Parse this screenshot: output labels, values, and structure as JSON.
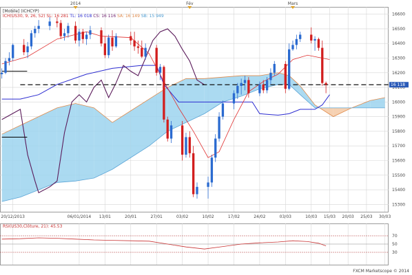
{
  "chart_data": [
    {
      "type": "candlestick",
      "legend": {
        "title": "[Mobile] (ICHCYP)",
        "entries": [
          {
            "label": "ICH(US30, 9, 26, 52)",
            "color": "#d03030"
          },
          {
            "label": "SL: 16 281",
            "color": "#d03030"
          },
          {
            "label": "TL: 16 018",
            "color": "#2a2ad0"
          },
          {
            "label": "CS: 16 116",
            "color": "#6a1a6a"
          },
          {
            "label": "SA: 16 149",
            "color": "#e08a4a"
          },
          {
            "label": "SB: 15 949",
            "color": "#4a9ad0"
          }
        ]
      },
      "top_labels": [
        {
          "label": "2014",
          "day": 5
        },
        {
          "label": "Fév",
          "day": 36
        },
        {
          "label": "Mars",
          "day": 64
        }
      ],
      "x_ticks": [
        {
          "label": "20/12/2013",
          "day": -12
        },
        {
          "label": "06/01/2014",
          "day": 6
        },
        {
          "label": "13/01",
          "day": 13
        },
        {
          "label": "20/01",
          "day": 20
        },
        {
          "label": "27/01",
          "day": 27
        },
        {
          "label": "03/02",
          "day": 34
        },
        {
          "label": "10/02",
          "day": 41
        },
        {
          "label": "17/02",
          "day": 48
        },
        {
          "label": "24/02",
          "day": 55
        },
        {
          "label": "03/03",
          "day": 62
        },
        {
          "label": "10/03",
          "day": 69
        },
        {
          "label": "15/03",
          "day": 74
        },
        {
          "label": "20/03",
          "day": 79
        },
        {
          "label": "25/03",
          "day": 84
        },
        {
          "label": "30/03",
          "day": 89
        }
      ],
      "ylim": [
        15250,
        16650
      ],
      "y_ticks": [
        15300,
        15400,
        15500,
        15600,
        15700,
        15800,
        15900,
        16000,
        16100,
        16200,
        16300,
        16400,
        16500,
        16600
      ],
      "last_price": "16 118",
      "last_price_value": 16118,
      "candles": [
        {
          "day": -15,
          "o": 16190,
          "h": 16230,
          "l": 16160,
          "c": 16200
        },
        {
          "day": -14,
          "o": 16200,
          "h": 16300,
          "l": 16190,
          "c": 16280
        },
        {
          "day": -13,
          "o": 16280,
          "h": 16340,
          "l": 16250,
          "c": 16300
        },
        {
          "day": -12,
          "o": 16300,
          "h": 16400,
          "l": 16280,
          "c": 16390
        },
        {
          "day": -9,
          "o": 16390,
          "h": 16430,
          "l": 16320,
          "c": 16340
        },
        {
          "day": -8,
          "o": 16340,
          "h": 16410,
          "l": 16300,
          "c": 16380
        },
        {
          "day": -7,
          "o": 16380,
          "h": 16490,
          "l": 16360,
          "c": 16470
        },
        {
          "day": -6,
          "o": 16470,
          "h": 16520,
          "l": 16440,
          "c": 16500
        },
        {
          "day": -5,
          "o": 16500,
          "h": 16560,
          "l": 16470,
          "c": 16520
        },
        {
          "day": -2,
          "o": 16520,
          "h": 16580,
          "l": 16490,
          "c": 16550
        },
        {
          "day": 0,
          "o": 16550,
          "h": 16580,
          "l": 16510,
          "c": 16540
        },
        {
          "day": 1,
          "o": 16540,
          "h": 16560,
          "l": 16430,
          "c": 16450
        },
        {
          "day": 2,
          "o": 16450,
          "h": 16500,
          "l": 16420,
          "c": 16470
        },
        {
          "day": 3,
          "o": 16470,
          "h": 16540,
          "l": 16440,
          "c": 16520
        },
        {
          "day": 5,
          "o": 16520,
          "h": 16550,
          "l": 16400,
          "c": 16420
        },
        {
          "day": 6,
          "o": 16420,
          "h": 16500,
          "l": 16380,
          "c": 16480
        },
        {
          "day": 7,
          "o": 16480,
          "h": 16500,
          "l": 16400,
          "c": 16430
        },
        {
          "day": 8,
          "o": 16430,
          "h": 16480,
          "l": 16390,
          "c": 16460
        },
        {
          "day": 9,
          "o": 16460,
          "h": 16520,
          "l": 16430,
          "c": 16490
        },
        {
          "day": 12,
          "o": 16490,
          "h": 16510,
          "l": 16380,
          "c": 16400
        },
        {
          "day": 13,
          "o": 16400,
          "h": 16450,
          "l": 16300,
          "c": 16320
        },
        {
          "day": 14,
          "o": 16320,
          "h": 16460,
          "l": 16300,
          "c": 16440
        },
        {
          "day": 15,
          "o": 16440,
          "h": 16490,
          "l": 16350,
          "c": 16380
        },
        {
          "day": 16,
          "o": 16380,
          "h": 16470,
          "l": 16370,
          "c": 16450
        },
        {
          "day": 20,
          "o": 16450,
          "h": 16480,
          "l": 16390,
          "c": 16420
        },
        {
          "day": 21,
          "o": 16420,
          "h": 16480,
          "l": 16350,
          "c": 16380
        },
        {
          "day": 22,
          "o": 16380,
          "h": 16420,
          "l": 16330,
          "c": 16370
        },
        {
          "day": 23,
          "o": 16370,
          "h": 16420,
          "l": 16300,
          "c": 16310
        },
        {
          "day": 24,
          "o": 16310,
          "h": 16400,
          "l": 16290,
          "c": 16370
        },
        {
          "day": 27,
          "o": 16370,
          "h": 16390,
          "l": 16180,
          "c": 16200
        },
        {
          "day": 28,
          "o": 16200,
          "h": 16260,
          "l": 16150,
          "c": 16240
        },
        {
          "day": 29,
          "o": 16240,
          "h": 16250,
          "l": 15860,
          "c": 15880
        },
        {
          "day": 30,
          "o": 15880,
          "h": 15900,
          "l": 15730,
          "c": 15750
        },
        {
          "day": 31,
          "o": 15750,
          "h": 15870,
          "l": 15720,
          "c": 15840
        },
        {
          "day": 34,
          "o": 15840,
          "h": 15870,
          "l": 15600,
          "c": 15640
        },
        {
          "day": 35,
          "o": 15640,
          "h": 15790,
          "l": 15620,
          "c": 15760
        },
        {
          "day": 36,
          "o": 15760,
          "h": 15800,
          "l": 15620,
          "c": 15650
        },
        {
          "day": 37,
          "o": 15650,
          "h": 15700,
          "l": 15350,
          "c": 15370
        },
        {
          "day": 38,
          "o": 15370,
          "h": 15450,
          "l": 15340,
          "c": 15420
        },
        {
          "day": 41,
          "o": 15420,
          "h": 15490,
          "l": 15340,
          "c": 15450
        },
        {
          "day": 42,
          "o": 15450,
          "h": 15640,
          "l": 15420,
          "c": 15620
        },
        {
          "day": 43,
          "o": 15620,
          "h": 15780,
          "l": 15590,
          "c": 15750
        },
        {
          "day": 44,
          "o": 15750,
          "h": 15930,
          "l": 15730,
          "c": 15900
        },
        {
          "day": 45,
          "o": 15900,
          "h": 16010,
          "l": 15880,
          "c": 15990
        },
        {
          "day": 48,
          "o": 15990,
          "h": 16080,
          "l": 15950,
          "c": 16060
        },
        {
          "day": 49,
          "o": 16060,
          "h": 16130,
          "l": 16020,
          "c": 16110
        },
        {
          "day": 50,
          "o": 16110,
          "h": 16160,
          "l": 16050,
          "c": 16130
        },
        {
          "day": 51,
          "o": 16130,
          "h": 16180,
          "l": 16080,
          "c": 16150
        },
        {
          "day": 52,
          "o": 16150,
          "h": 16170,
          "l": 16030,
          "c": 16060
        },
        {
          "day": 55,
          "o": 16060,
          "h": 16140,
          "l": 16040,
          "c": 16120
        },
        {
          "day": 56,
          "o": 16120,
          "h": 16150,
          "l": 16060,
          "c": 16080
        },
        {
          "day": 57,
          "o": 16080,
          "h": 16170,
          "l": 16060,
          "c": 16150
        },
        {
          "day": 58,
          "o": 16150,
          "h": 16230,
          "l": 16120,
          "c": 16200
        },
        {
          "day": 59,
          "o": 16200,
          "h": 16280,
          "l": 16180,
          "c": 16260
        },
        {
          "day": 62,
          "o": 16260,
          "h": 16280,
          "l": 16060,
          "c": 16090
        },
        {
          "day": 63,
          "o": 16090,
          "h": 16400,
          "l": 16080,
          "c": 16360
        },
        {
          "day": 64,
          "o": 16360,
          "h": 16420,
          "l": 16350,
          "c": 16390
        },
        {
          "day": 65,
          "o": 16390,
          "h": 16460,
          "l": 16360,
          "c": 16430
        },
        {
          "day": 66,
          "o": 16430,
          "h": 16480,
          "l": 16410,
          "c": 16460
        },
        {
          "day": 69,
          "o": 16460,
          "h": 16510,
          "l": 16400,
          "c": 16420
        },
        {
          "day": 70,
          "o": 16420,
          "h": 16450,
          "l": 16350,
          "c": 16430
        },
        {
          "day": 71,
          "o": 16430,
          "h": 16440,
          "l": 16350,
          "c": 16370
        },
        {
          "day": 72,
          "o": 16370,
          "h": 16420,
          "l": 16110,
          "c": 16130
        },
        {
          "day": 73,
          "o": 16130,
          "h": 16140,
          "l": 16060,
          "c": 16118
        }
      ],
      "tenkan": [
        [
          -15,
          16260
        ],
        [
          -8,
          16310
        ],
        [
          0,
          16430
        ],
        [
          8,
          16480
        ],
        [
          12,
          16450
        ],
        [
          20,
          16440
        ],
        [
          25,
          16330
        ],
        [
          29,
          16140
        ],
        [
          33,
          15960
        ],
        [
          37,
          15800
        ],
        [
          41,
          15620
        ],
        [
          44,
          15660
        ],
        [
          48,
          15880
        ],
        [
          52,
          16070
        ],
        [
          56,
          16140
        ],
        [
          60,
          16190
        ],
        [
          64,
          16290
        ],
        [
          68,
          16320
        ],
        [
          72,
          16300
        ],
        [
          74,
          16290
        ]
      ],
      "kijun": [
        [
          -15,
          16020
        ],
        [
          -10,
          16020
        ],
        [
          -5,
          16050
        ],
        [
          0,
          16120
        ],
        [
          8,
          16190
        ],
        [
          15,
          16230
        ],
        [
          23,
          16250
        ],
        [
          27,
          16250
        ],
        [
          29,
          16120
        ],
        [
          33,
          16000
        ],
        [
          40,
          16000
        ],
        [
          50,
          16000
        ],
        [
          53,
          16000
        ],
        [
          55,
          15920
        ],
        [
          60,
          15910
        ],
        [
          63,
          15920
        ],
        [
          66,
          15950
        ],
        [
          70,
          15950
        ],
        [
          72,
          15980
        ],
        [
          74,
          16050
        ]
      ],
      "chikou": [
        [
          -15,
          15880
        ],
        [
          -10,
          15950
        ],
        [
          -8,
          15640
        ],
        [
          -6,
          15460
        ],
        [
          -5,
          15380
        ],
        [
          -2,
          15420
        ],
        [
          0,
          15460
        ],
        [
          2,
          15790
        ],
        [
          4,
          16000
        ],
        [
          6,
          16050
        ],
        [
          8,
          16000
        ],
        [
          10,
          16100
        ],
        [
          12,
          16150
        ],
        [
          14,
          16030
        ],
        [
          16,
          16130
        ],
        [
          18,
          16250
        ],
        [
          20,
          16210
        ],
        [
          22,
          16180
        ],
        [
          24,
          16300
        ],
        [
          26,
          16420
        ],
        [
          28,
          16480
        ],
        [
          30,
          16500
        ],
        [
          32,
          16450
        ],
        [
          34,
          16360
        ],
        [
          36,
          16280
        ],
        [
          38,
          16150
        ],
        [
          40,
          16118
        ]
      ],
      "kumo": {
        "x": [
          -15,
          -10,
          -5,
          0,
          5,
          10,
          15,
          20,
          25,
          30,
          35,
          40,
          45,
          50,
          55,
          60,
          63,
          66,
          70,
          75,
          80,
          85,
          89
        ],
        "senkou_a": [
          15780,
          15840,
          15900,
          15960,
          15990,
          15960,
          15860,
          15940,
          16020,
          16100,
          16160,
          16160,
          16170,
          16180,
          16180,
          16200,
          16180,
          16110,
          15980,
          15900,
          15960,
          16010,
          16030
        ],
        "senkou_b": [
          15320,
          15350,
          15400,
          15450,
          15460,
          15480,
          15540,
          15620,
          15700,
          15800,
          15860,
          15920,
          16000,
          16040,
          16090,
          16120,
          16120,
          16050,
          15960,
          15960,
          15960,
          15960,
          15960
        ]
      },
      "support_lines": [
        {
          "y": 16210,
          "from": -15,
          "to": -10
        },
        {
          "y": 15760,
          "from": -15,
          "to": -10
        }
      ],
      "dashed_level": 16118
    },
    {
      "type": "line",
      "legend": "RSI(US30,Clôture, 21): 45.53",
      "ylim": [
        0,
        100
      ],
      "levels": [
        70,
        50,
        30
      ],
      "values": [
        [
          -15,
          62
        ],
        [
          -10,
          63
        ],
        [
          -5,
          65
        ],
        [
          0,
          64
        ],
        [
          5,
          62
        ],
        [
          10,
          60
        ],
        [
          15,
          59
        ],
        [
          20,
          58
        ],
        [
          25,
          57
        ],
        [
          30,
          50
        ],
        [
          35,
          43
        ],
        [
          40,
          38
        ],
        [
          45,
          44
        ],
        [
          50,
          50
        ],
        [
          55,
          53
        ],
        [
          60,
          55
        ],
        [
          64,
          58
        ],
        [
          68,
          56
        ],
        [
          71,
          52
        ],
        [
          73,
          45.53
        ]
      ]
    }
  ],
  "footer": "FXCM Marketscope © 2014",
  "colors": {
    "up": "#2a6ad0",
    "down": "#d21e1e",
    "tenkan": "#e03030",
    "kijun": "#2a2ad0",
    "chikou": "#5a1a5a",
    "kumo_bull": "#9cd3ef",
    "kumo_bear": "#f4c9a4",
    "grid": "#d5d5d5",
    "rsi": "#c83232"
  }
}
